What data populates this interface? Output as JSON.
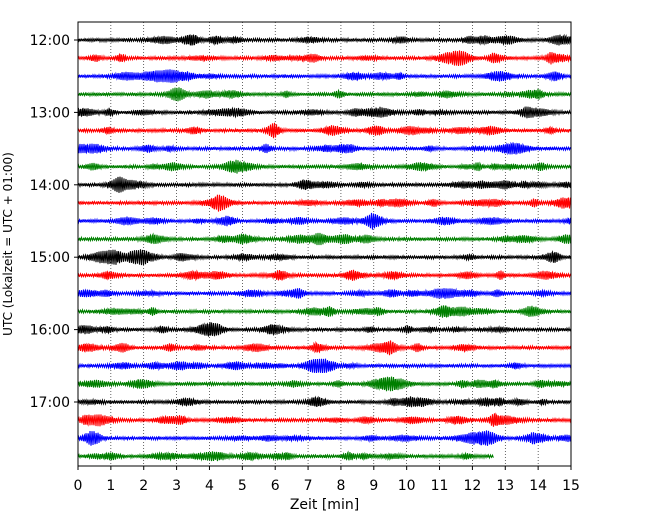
{
  "chart_data": {
    "type": "line",
    "title": "",
    "xlabel": "Zeit  [min]",
    "ylabel": "UTC (Lokalzeit = UTC + 01:00)",
    "xlim": [
      0,
      15
    ],
    "x_ticks": [
      0,
      1,
      2,
      3,
      4,
      5,
      6,
      7,
      8,
      9,
      10,
      11,
      12,
      13,
      14,
      15
    ],
    "x_tick_labels": [
      "0",
      "1",
      "2",
      "3",
      "4",
      "5",
      "6",
      "7",
      "8",
      "9",
      "10",
      "11",
      "12",
      "13",
      "14",
      "15"
    ],
    "y_tick_labels": [
      "12:00",
      "13:00",
      "14:00",
      "15:00",
      "16:00",
      "17:00"
    ],
    "grid": "vertical dotted",
    "colors": [
      "#000000",
      "#ff0000",
      "#0000ff",
      "#007f00"
    ],
    "traces": [
      {
        "start": "12:00",
        "color": "#000000",
        "x_end": 15
      },
      {
        "start": "12:15",
        "color": "#ff0000",
        "x_end": 15
      },
      {
        "start": "12:30",
        "color": "#0000ff",
        "x_end": 15
      },
      {
        "start": "12:45",
        "color": "#007f00",
        "x_end": 15
      },
      {
        "start": "13:00",
        "color": "#000000",
        "x_end": 15
      },
      {
        "start": "13:15",
        "color": "#ff0000",
        "x_end": 15
      },
      {
        "start": "13:30",
        "color": "#0000ff",
        "x_end": 15
      },
      {
        "start": "13:45",
        "color": "#007f00",
        "x_end": 15
      },
      {
        "start": "14:00",
        "color": "#000000",
        "x_end": 15
      },
      {
        "start": "14:15",
        "color": "#ff0000",
        "x_end": 15
      },
      {
        "start": "14:30",
        "color": "#0000ff",
        "x_end": 15
      },
      {
        "start": "14:45",
        "color": "#007f00",
        "x_end": 15
      },
      {
        "start": "15:00",
        "color": "#000000",
        "x_end": 15
      },
      {
        "start": "15:15",
        "color": "#ff0000",
        "x_end": 15
      },
      {
        "start": "15:30",
        "color": "#0000ff",
        "x_end": 15
      },
      {
        "start": "15:45",
        "color": "#007f00",
        "x_end": 15
      },
      {
        "start": "16:00",
        "color": "#000000",
        "x_end": 15
      },
      {
        "start": "16:15",
        "color": "#ff0000",
        "x_end": 15
      },
      {
        "start": "16:30",
        "color": "#0000ff",
        "x_end": 15
      },
      {
        "start": "16:45",
        "color": "#007f00",
        "x_end": 15
      },
      {
        "start": "17:00",
        "color": "#000000",
        "x_end": 15
      },
      {
        "start": "17:15",
        "color": "#ff0000",
        "x_end": 15
      },
      {
        "start": "17:30",
        "color": "#0000ff",
        "x_end": 15
      },
      {
        "start": "17:45",
        "color": "#007f00",
        "x_end": 12.65
      }
    ]
  }
}
